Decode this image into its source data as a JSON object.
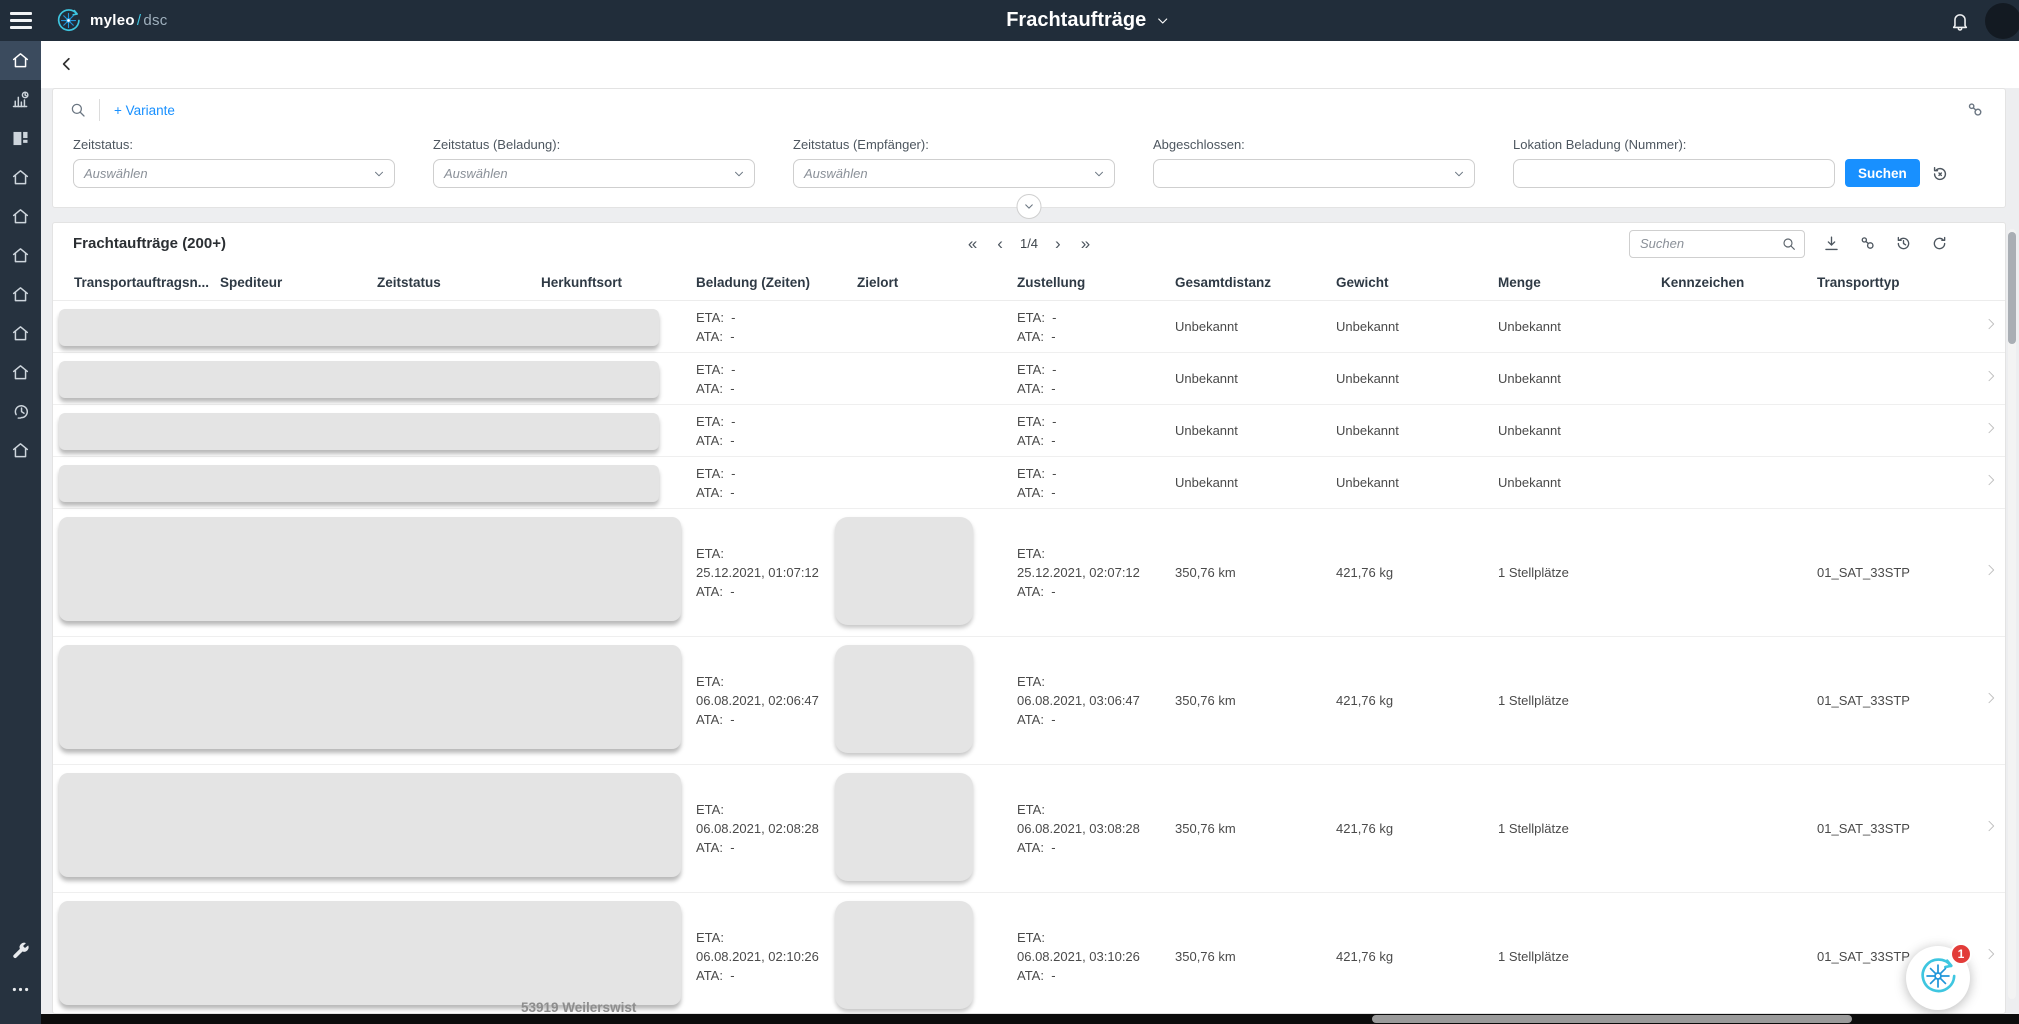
{
  "colors": {
    "accent": "#1890ff",
    "topbar": "#212d3a",
    "sidebar": "#26323f",
    "badge": "#e23c39",
    "logo_blue": "#3ec6e0",
    "logo_star": "#2196d9"
  },
  "topbar": {
    "brand": {
      "name": "myleo",
      "sep": "/",
      "product": "dsc"
    },
    "title": "Frachtaufträge",
    "icons": [
      "menu-icon",
      "logo-icon",
      "chevron-down-icon",
      "bell-icon",
      "avatar"
    ]
  },
  "sidebar": {
    "items": [
      {
        "icon": "home",
        "active": true
      },
      {
        "icon": "chart-clock",
        "active": false
      },
      {
        "icon": "dashboard",
        "active": false
      },
      {
        "icon": "home",
        "active": false
      },
      {
        "icon": "home",
        "active": false
      },
      {
        "icon": "home",
        "active": false
      },
      {
        "icon": "home",
        "active": false
      },
      {
        "icon": "home",
        "active": false
      },
      {
        "icon": "home",
        "active": false
      },
      {
        "icon": "clock-24",
        "active": false
      },
      {
        "icon": "home",
        "active": false
      }
    ],
    "bottom_items": [
      {
        "icon": "wrench"
      },
      {
        "icon": "ellipsis"
      }
    ]
  },
  "filters": {
    "variante_label": "+ Variante",
    "top_icons": [
      "search",
      "variants"
    ],
    "fields": [
      {
        "label": "Zeitstatus:",
        "placeholder": "Auswählen",
        "type": "select"
      },
      {
        "label": "Zeitstatus (Beladung):",
        "placeholder": "Auswählen",
        "type": "select"
      },
      {
        "label": "Zeitstatus (Empfänger):",
        "placeholder": "Auswählen",
        "type": "select"
      },
      {
        "label": "Abgeschlossen:",
        "placeholder": "",
        "type": "select"
      },
      {
        "label": "Lokation Beladung (Nummer):",
        "placeholder": "",
        "type": "text"
      }
    ],
    "search_button": "Suchen"
  },
  "table": {
    "title": "Frachtaufträge (200+)",
    "pagination": {
      "first": "«",
      "prev": "‹",
      "current": "1/4",
      "next": "›",
      "last": "»"
    },
    "search_placeholder": "Suchen",
    "toolbar_icons": [
      "download",
      "variants",
      "history",
      "refresh"
    ],
    "labels": {
      "eta": "ETA:",
      "ata": "ATA:",
      "empty": "-"
    },
    "columns": [
      "Transportauftragsn...",
      "Spediteur",
      "Zeitstatus",
      "Herkunftsort",
      "Beladung (Zeiten)",
      "Zielort",
      "Zustellung",
      "Gesamtdistanz",
      "Gewicht",
      "Menge",
      "Kennzeichen",
      "Transporttyp"
    ],
    "rows": [
      {
        "size": "small",
        "beladung_eta": "-",
        "beladung_ata": "-",
        "zustellung_eta": "-",
        "zustellung_ata": "-",
        "gesamtdistanz": "Unbekannt",
        "gewicht": "Unbekannt",
        "menge": "Unbekannt",
        "kennzeichen": "",
        "transporttyp": ""
      },
      {
        "size": "small",
        "beladung_eta": "-",
        "beladung_ata": "-",
        "zustellung_eta": "-",
        "zustellung_ata": "-",
        "gesamtdistanz": "Unbekannt",
        "gewicht": "Unbekannt",
        "menge": "Unbekannt",
        "kennzeichen": "",
        "transporttyp": ""
      },
      {
        "size": "small",
        "beladung_eta": "-",
        "beladung_ata": "-",
        "zustellung_eta": "-",
        "zustellung_ata": "-",
        "gesamtdistanz": "Unbekannt",
        "gewicht": "Unbekannt",
        "menge": "Unbekannt",
        "kennzeichen": "",
        "transporttyp": ""
      },
      {
        "size": "small",
        "beladung_eta": "-",
        "beladung_ata": "-",
        "zustellung_eta": "-",
        "zustellung_ata": "-",
        "gesamtdistanz": "Unbekannt",
        "gewicht": "Unbekannt",
        "menge": "Unbekannt",
        "kennzeichen": "",
        "transporttyp": ""
      },
      {
        "size": "large",
        "beladung_eta": "25.12.2021, 01:07:12",
        "beladung_ata": "-",
        "zustellung_eta": "25.12.2021, 02:07:12",
        "zustellung_ata": "-",
        "gesamtdistanz": "350,76 km",
        "gewicht": "421,76 kg",
        "menge": "1 Stellplätze",
        "kennzeichen": "",
        "transporttyp": "01_SAT_33STP"
      },
      {
        "size": "large",
        "beladung_eta": "06.08.2021, 02:06:47",
        "beladung_ata": "-",
        "zustellung_eta": "06.08.2021, 03:06:47",
        "zustellung_ata": "-",
        "gesamtdistanz": "350,76 km",
        "gewicht": "421,76 kg",
        "menge": "1 Stellplätze",
        "kennzeichen": "",
        "transporttyp": "01_SAT_33STP"
      },
      {
        "size": "large",
        "beladung_eta": "06.08.2021, 02:08:28",
        "beladung_ata": "-",
        "zustellung_eta": "06.08.2021, 03:08:28",
        "zustellung_ata": "-",
        "gesamtdistanz": "350,76 km",
        "gewicht": "421,76 kg",
        "menge": "1 Stellplätze",
        "kennzeichen": "",
        "transporttyp": "01_SAT_33STP"
      },
      {
        "size": "large",
        "beladung_eta": "06.08.2021, 02:10:26",
        "beladung_ata": "-",
        "zustellung_eta": "06.08.2021, 03:10:26",
        "zustellung_ata": "-",
        "gesamtdistanz": "350,76 km",
        "gewicht": "421,76 kg",
        "menge": "1 Stellplätze",
        "kennzeichen": "",
        "transporttyp": "01_SAT_33STP",
        "partial_location": "53919 Weilerswist"
      }
    ]
  },
  "fab": {
    "badge": "1"
  }
}
